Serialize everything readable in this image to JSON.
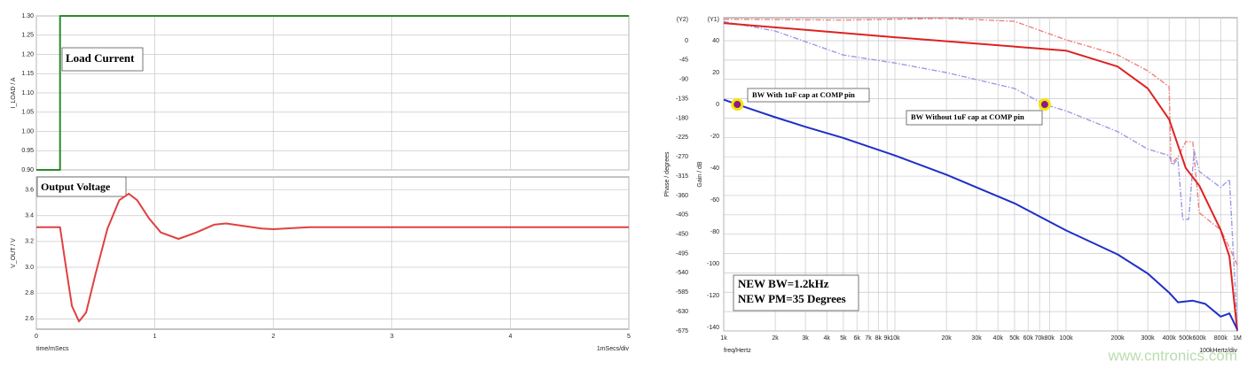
{
  "chart_data": [
    {
      "type": "line",
      "ylabel": "I_LOAD / A",
      "annotation": "Load Current",
      "xlim": [
        0,
        5
      ],
      "ylim": [
        0.9,
        1.3
      ],
      "yticks": [
        {
          "value": 0.9,
          "label": "0.90"
        },
        {
          "value": 0.95,
          "label": "0.95"
        },
        {
          "value": 1.0,
          "label": "1.00"
        },
        {
          "value": 1.05,
          "label": "1.05"
        },
        {
          "value": 1.1,
          "label": "1.10"
        },
        {
          "value": 1.15,
          "label": "1.15"
        },
        {
          "value": 1.2,
          "label": "1.20"
        },
        {
          "value": 1.25,
          "label": "1.25"
        },
        {
          "value": 1.3,
          "label": "1.30"
        }
      ],
      "x": [
        0,
        0.2,
        0.2,
        5
      ],
      "values": [
        0.9,
        0.9,
        1.3,
        1.3
      ],
      "color": "#2a8a2a",
      "grid": true
    },
    {
      "type": "line",
      "ylabel": "V_OUT / V",
      "annotation": "Output Voltage",
      "xlabel": "time/mSecs",
      "x_scale_label": "1mSecs/div",
      "xlim": [
        0,
        5
      ],
      "xticks": [
        0,
        1,
        2,
        3,
        4,
        5
      ],
      "ylim": [
        2.52,
        3.7
      ],
      "yticks": [
        2.6,
        2.8,
        {
          "value": 3.0,
          "label": "3.0"
        },
        3.2,
        3.4,
        3.6
      ],
      "x": [
        0,
        0.2,
        0.25,
        0.3,
        0.36,
        0.42,
        0.5,
        0.6,
        0.7,
        0.78,
        0.85,
        0.95,
        1.05,
        1.2,
        1.35,
        1.5,
        1.6,
        1.75,
        1.9,
        2.0,
        2.3,
        3.0,
        5.0
      ],
      "values": [
        3.31,
        3.31,
        3.0,
        2.7,
        2.58,
        2.65,
        2.95,
        3.3,
        3.52,
        3.57,
        3.52,
        3.38,
        3.27,
        3.22,
        3.27,
        3.33,
        3.34,
        3.32,
        3.3,
        3.295,
        3.31,
        3.31,
        3.31
      ],
      "color": "#e04040",
      "grid": true
    },
    {
      "type": "line",
      "xscale": "log",
      "xlabel": "freq/Hertz",
      "x_scale_label": "100kHertz/div",
      "xlim": [
        1000,
        1000000
      ],
      "xticks": [
        {
          "value": 1000,
          "label": "1k"
        },
        {
          "value": 2000,
          "label": "2k"
        },
        {
          "value": 3000,
          "label": "3k"
        },
        {
          "value": 4000,
          "label": "4k"
        },
        {
          "value": 5000,
          "label": "5k"
        },
        {
          "value": 6000,
          "label": "6k"
        },
        {
          "value": 7000,
          "label": "7k"
        },
        {
          "value": 8000,
          "label": "8k"
        },
        {
          "value": 9000,
          "label": "9k"
        },
        {
          "value": 10000,
          "label": "10k"
        },
        {
          "value": 20000,
          "label": "20k"
        },
        {
          "value": 30000,
          "label": "30k"
        },
        {
          "value": 40000,
          "label": "40k"
        },
        {
          "value": 50000,
          "label": "50k"
        },
        {
          "value": 60000,
          "label": "60k"
        },
        {
          "value": 70000,
          "label": "70k"
        },
        {
          "value": 80000,
          "label": "80k"
        },
        {
          "value": 100000,
          "label": "100k"
        },
        {
          "value": 200000,
          "label": "200k"
        },
        {
          "value": 300000,
          "label": "300k"
        },
        {
          "value": 400000,
          "label": "400k"
        },
        {
          "value": 500000,
          "label": "500k"
        },
        {
          "value": 600000,
          "label": "600k"
        },
        {
          "value": 800000,
          "label": "800k"
        },
        {
          "value": 1000000,
          "label": "1M"
        }
      ],
      "ylabel": "Gain / dB",
      "y_axis_tag": "(Y1)",
      "ylim": [
        -142,
        54.4
      ],
      "yticks": [
        40,
        20,
        0,
        -20,
        -40,
        -60,
        -80,
        -100,
        -120,
        -140
      ],
      "y2label": "Phase / degrees",
      "y2_axis_tag": "(Y2)",
      "y2lim": [
        -675,
        53.5
      ],
      "y2ticks": [
        0,
        -45,
        -90,
        -135,
        -180,
        -225,
        -270,
        -315,
        -360,
        -405,
        -450,
        -495,
        -540,
        -585,
        -630,
        -675
      ],
      "grid": true,
      "series": [
        {
          "color": "#f08080",
          "dash": true,
          "axis": "y2",
          "x": [
            1000,
            5000,
            10000,
            20000,
            50000,
            100000,
            200000,
            300000,
            400000,
            410000,
            450000,
            500000,
            550000,
            600000,
            800000,
            900000,
            1000000
          ],
          "values": [
            50,
            48,
            50,
            52,
            45,
            2,
            -33,
            -70,
            -107,
            -286,
            -271,
            -235,
            -235,
            -400,
            -440,
            -481,
            -522
          ]
        },
        {
          "color": "#9a9ae6",
          "dash": true,
          "x": [
            1000,
            2000,
            5000,
            10000,
            20000,
            50000,
            75000,
            100000,
            200000,
            300000,
            400000,
            420000,
            450000,
            480000,
            520000,
            560000,
            600000,
            800000,
            900000,
            1000000
          ],
          "values": [
            52,
            46,
            31,
            26,
            20,
            10,
            0,
            -4,
            -17,
            -28,
            -32,
            -38,
            -34,
            -72,
            -72,
            -29,
            -42,
            -52,
            -47,
            -140
          ]
        },
        {
          "color": "#dd2222",
          "axis": "y2",
          "x": [
            1000,
            10000,
            100000,
            200000,
            300000,
            400000,
            500000,
            600000,
            800000,
            900000,
            1000000
          ],
          "values": [
            41,
            8,
            -23,
            -60,
            -111,
            -183,
            -296,
            -337,
            -440,
            -502,
            -675
          ]
        },
        {
          "color": "#1f2fc8",
          "x": [
            1000,
            1200,
            2000,
            3000,
            5000,
            10000,
            20000,
            50000,
            100000,
            200000,
            300000,
            400000,
            450000,
            550000,
            650000,
            800000,
            900000,
            1000000
          ],
          "values": [
            3,
            0,
            -8,
            -14,
            -21,
            -32,
            -44,
            -62,
            -79,
            -94,
            -106,
            -118,
            -124,
            -123,
            -125,
            -133,
            -131,
            -141
          ]
        }
      ],
      "markers": [
        {
          "x": 1200,
          "y": 0
        },
        {
          "x": 75000,
          "y": 0
        }
      ],
      "annotations": [
        "BW With 1uF cap at COMP pin",
        "BW Without 1uF cap at COMP pin",
        "NEW BW=1.2kHz",
        "NEW PM=35 Degrees"
      ]
    }
  ],
  "watermark": "www.cntronics.com"
}
